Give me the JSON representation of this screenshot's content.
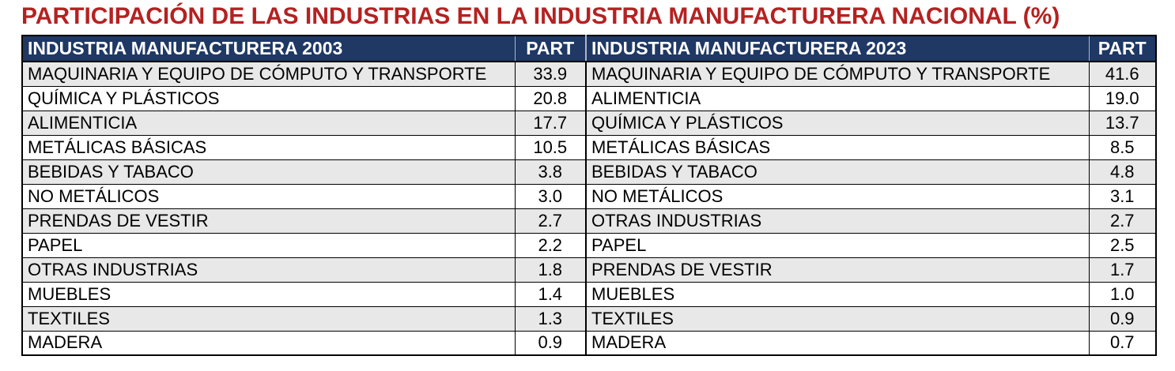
{
  "title": "PARTICIPACIÓN DE LAS INDUSTRIAS EN LA INDUSTRIA MANUFACTURERA NACIONAL (%)",
  "colors": {
    "title_text": "#b52121",
    "header_background": "#1f3864",
    "header_text": "#ffffff",
    "stripe_row": "#e8e8e8",
    "body_text": "#000000",
    "border": "#000000"
  },
  "chart_data": {
    "type": "table",
    "title": "PARTICIPACIÓN DE LAS INDUSTRIAS EN LA INDUSTRIA MANUFACTURERA NACIONAL (%)",
    "tables": [
      {
        "header": "INDUSTRIA MANUFACTURERA 2003",
        "part_header": "PART",
        "rows": [
          {
            "name": "MAQUINARIA Y EQUIPO DE CÓMPUTO Y TRANSPORTE",
            "part": "33.9"
          },
          {
            "name": "QUÍMICA Y PLÁSTICOS",
            "part": "20.8"
          },
          {
            "name": "ALIMENTICIA",
            "part": "17.7"
          },
          {
            "name": "METÁLICAS BÁSICAS",
            "part": "10.5"
          },
          {
            "name": "BEBIDAS Y TABACO",
            "part": "3.8"
          },
          {
            "name": "NO METÁLICOS",
            "part": "3.0"
          },
          {
            "name": "PRENDAS DE VESTIR",
            "part": "2.7"
          },
          {
            "name": "PAPEL",
            "part": "2.2"
          },
          {
            "name": "OTRAS INDUSTRIAS",
            "part": "1.8"
          },
          {
            "name": "MUEBLES",
            "part": "1.4"
          },
          {
            "name": "TEXTILES",
            "part": "1.3"
          },
          {
            "name": "MADERA",
            "part": "0.9"
          }
        ]
      },
      {
        "header": "INDUSTRIA MANUFACTURERA 2023",
        "part_header": "PART",
        "rows": [
          {
            "name": "MAQUINARIA Y EQUIPO DE CÓMPUTO Y TRANSPORTE",
            "part": "41.6"
          },
          {
            "name": "ALIMENTICIA",
            "part": "19.0"
          },
          {
            "name": "QUÍMICA Y PLÁSTICOS",
            "part": "13.7"
          },
          {
            "name": "METÁLICAS BÁSICAS",
            "part": "8.5"
          },
          {
            "name": "BEBIDAS Y TABACO",
            "part": "4.8"
          },
          {
            "name": "NO METÁLICOS",
            "part": "3.1"
          },
          {
            "name": "OTRAS INDUSTRIAS",
            "part": "2.7"
          },
          {
            "name": "PAPEL",
            "part": "2.5"
          },
          {
            "name": "PRENDAS DE VESTIR",
            "part": "1.7"
          },
          {
            "name": "MUEBLES",
            "part": "1.0"
          },
          {
            "name": "TEXTILES",
            "part": "0.9"
          },
          {
            "name": "MADERA",
            "part": "0.7"
          }
        ]
      }
    ]
  }
}
